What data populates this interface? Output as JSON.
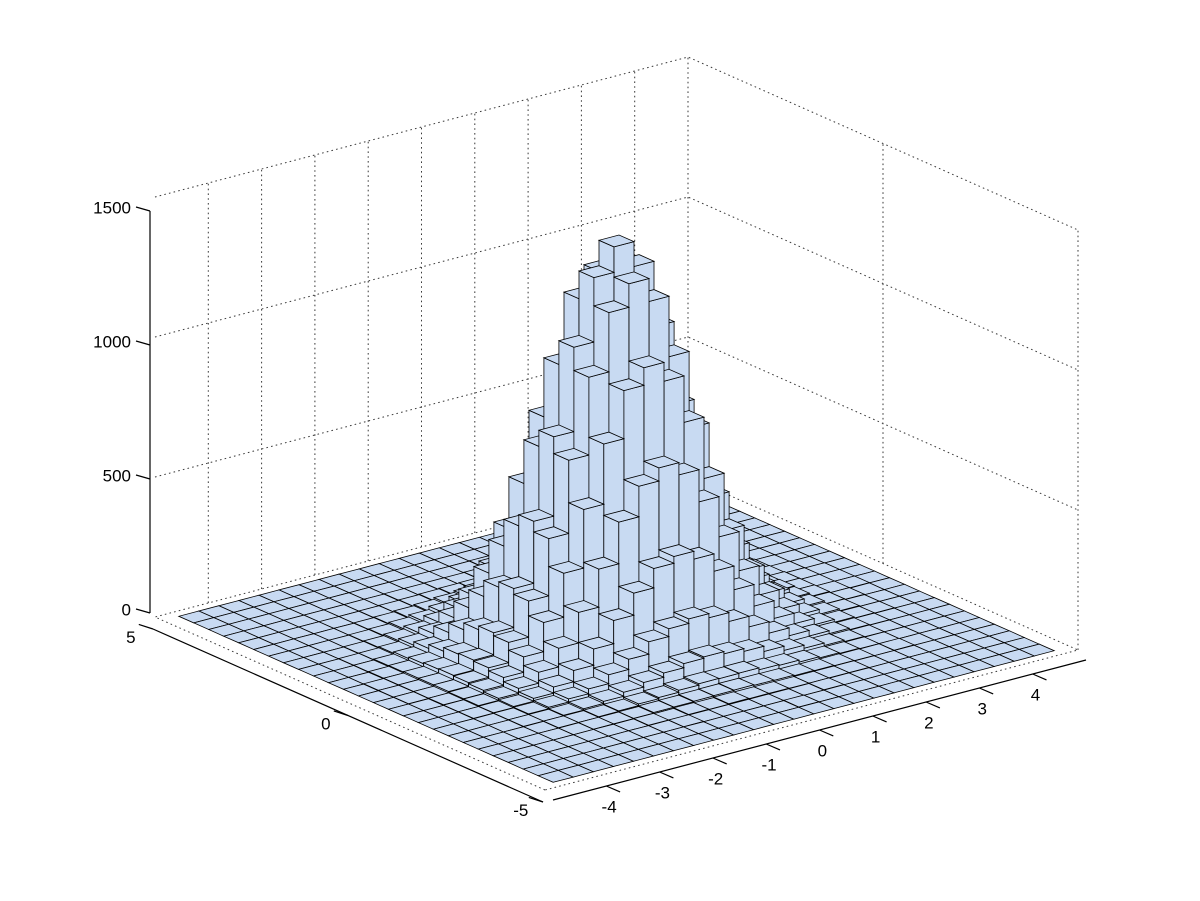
{
  "figure": {
    "title": "",
    "background": "#ffffff"
  },
  "chart_data": {
    "type": "3d-histogram",
    "description": "Bivariate Gaussian sample histogram (MATLAB hist3-style 3D bar plot)",
    "x_axis": {
      "range": [
        -5,
        5
      ],
      "ticks": [
        -4,
        -3,
        -2,
        -1,
        0,
        1,
        2,
        3,
        4
      ],
      "tick_labels": [
        "-4",
        "-3",
        "-2",
        "-1",
        "0",
        "1",
        "2",
        "3",
        "4"
      ],
      "nbins": 25,
      "bin_start": -4.7,
      "bin_width": 0.376
    },
    "y_axis": {
      "range": [
        -5,
        5
      ],
      "ticks": [
        5,
        0,
        -5
      ],
      "tick_labels": [
        "5",
        "0",
        "-5"
      ],
      "nbins": 25,
      "bin_start": -4.8,
      "bin_width": 0.384
    },
    "z_axis": {
      "range": [
        0,
        1500
      ],
      "ticks": [
        0,
        500,
        1000,
        1500
      ],
      "tick_labels": [
        "0",
        "500",
        "1000",
        "1500"
      ]
    },
    "grid": true,
    "legend": null,
    "peak_count": 1402,
    "counts": [
      [
        0,
        0,
        0,
        0,
        0,
        0,
        0,
        0,
        0,
        0,
        0,
        0,
        0,
        0,
        0,
        0,
        0,
        0,
        0,
        0,
        0,
        0,
        0,
        0,
        0
      ],
      [
        0,
        0,
        0,
        0,
        0,
        0,
        0,
        0,
        0,
        0,
        0,
        0,
        0,
        1,
        0,
        0,
        0,
        0,
        0,
        0,
        0,
        0,
        0,
        0,
        0
      ],
      [
        0,
        0,
        0,
        0,
        0,
        0,
        0,
        0,
        1,
        0,
        0,
        0,
        0,
        0,
        0,
        1,
        0,
        0,
        0,
        0,
        0,
        0,
        0,
        0,
        0
      ],
      [
        0,
        0,
        0,
        0,
        0,
        0,
        0,
        1,
        0,
        2,
        1,
        3,
        2,
        2,
        1,
        1,
        1,
        1,
        0,
        0,
        0,
        0,
        0,
        0,
        0
      ],
      [
        0,
        0,
        0,
        0,
        0,
        1,
        1,
        2,
        4,
        5,
        7,
        8,
        9,
        7,
        6,
        4,
        3,
        2,
        1,
        0,
        1,
        0,
        0,
        0,
        0
      ],
      [
        0,
        0,
        0,
        0,
        1,
        1,
        3,
        5,
        11,
        15,
        22,
        27,
        26,
        27,
        20,
        17,
        10,
        6,
        3,
        1,
        0,
        0,
        0,
        0,
        0
      ],
      [
        0,
        0,
        0,
        1,
        1,
        3,
        8,
        15,
        29,
        45,
        60,
        75,
        80,
        72,
        62,
        43,
        28,
        17,
        8,
        3,
        1,
        0,
        0,
        0,
        0
      ],
      [
        0,
        0,
        0,
        1,
        3,
        8,
        19,
        36,
        68,
        104,
        148,
        176,
        192,
        177,
        145,
        107,
        66,
        38,
        18,
        8,
        3,
        1,
        0,
        0,
        0
      ],
      [
        0,
        0,
        1,
        2,
        6,
        16,
        38,
        78,
        136,
        219,
        298,
        367,
        391,
        363,
        301,
        216,
        139,
        76,
        38,
        16,
        6,
        2,
        1,
        0,
        0
      ],
      [
        0,
        0,
        1,
        4,
        11,
        28,
        67,
        134,
        243,
        379,
        528,
        637,
        684,
        640,
        525,
        381,
        241,
        136,
        66,
        28,
        11,
        4,
        1,
        0,
        0
      ],
      [
        0,
        0,
        2,
        5,
        16,
        43,
        98,
        202,
        359,
        568,
        783,
        955,
        1018,
        951,
        785,
        566,
        361,
        200,
        99,
        42,
        16,
        5,
        2,
        0,
        0
      ],
      [
        0,
        1,
        2,
        7,
        20,
        54,
        126,
        255,
        459,
        720,
        998,
        1210,
        1294,
        1212,
        996,
        722,
        457,
        256,
        125,
        54,
        20,
        7,
        2,
        1,
        0
      ],
      [
        0,
        1,
        2,
        7,
        22,
        58,
        137,
        276,
        497,
        780,
        1081,
        1311,
        1402,
        1313,
        1079,
        782,
        495,
        278,
        136,
        59,
        22,
        7,
        2,
        1,
        0
      ],
      [
        0,
        1,
        2,
        7,
        20,
        55,
        124,
        257,
        457,
        722,
        996,
        1212,
        1291,
        1210,
        998,
        720,
        459,
        255,
        126,
        54,
        20,
        7,
        2,
        1,
        0
      ],
      [
        0,
        0,
        2,
        5,
        16,
        42,
        100,
        200,
        361,
        566,
        785,
        952,
        1017,
        954,
        783,
        568,
        359,
        201,
        98,
        43,
        16,
        5,
        2,
        0,
        0
      ],
      [
        0,
        0,
        1,
        4,
        11,
        28,
        66,
        136,
        241,
        381,
        525,
        640,
        683,
        638,
        527,
        379,
        243,
        134,
        67,
        28,
        11,
        4,
        1,
        0,
        0
      ],
      [
        0,
        0,
        1,
        2,
        6,
        16,
        38,
        77,
        137,
        218,
        299,
        366,
        390,
        364,
        300,
        218,
        137,
        77,
        38,
        16,
        6,
        2,
        1,
        0,
        0
      ],
      [
        0,
        0,
        0,
        1,
        3,
        8,
        18,
        37,
        67,
        105,
        147,
        177,
        190,
        179,
        146,
        105,
        68,
        37,
        18,
        8,
        3,
        1,
        0,
        0,
        0
      ],
      [
        0,
        0,
        0,
        0,
        1,
        3,
        8,
        16,
        28,
        44,
        62,
        73,
        79,
        74,
        60,
        45,
        28,
        16,
        8,
        3,
        1,
        0,
        0,
        0,
        0
      ],
      [
        0,
        0,
        0,
        0,
        0,
        1,
        3,
        6,
        10,
        16,
        22,
        26,
        28,
        25,
        21,
        16,
        11,
        5,
        3,
        1,
        0,
        0,
        0,
        0,
        0
      ],
      [
        0,
        0,
        0,
        0,
        0,
        0,
        1,
        2,
        3,
        5,
        7,
        8,
        8,
        7,
        6,
        5,
        3,
        2,
        1,
        0,
        0,
        0,
        0,
        0,
        0
      ],
      [
        0,
        0,
        0,
        0,
        0,
        0,
        0,
        0,
        1,
        1,
        2,
        2,
        3,
        2,
        1,
        2,
        1,
        0,
        0,
        0,
        0,
        0,
        0,
        0,
        0
      ],
      [
        0,
        0,
        0,
        0,
        0,
        0,
        0,
        0,
        0,
        0,
        1,
        0,
        0,
        1,
        0,
        0,
        0,
        0,
        0,
        0,
        0,
        0,
        0,
        0,
        0
      ],
      [
        0,
        0,
        0,
        0,
        0,
        0,
        0,
        0,
        0,
        0,
        0,
        0,
        0,
        0,
        0,
        0,
        0,
        0,
        0,
        0,
        0,
        0,
        0,
        0,
        0
      ],
      [
        0,
        0,
        0,
        0,
        0,
        0,
        0,
        0,
        0,
        0,
        0,
        0,
        0,
        0,
        0,
        0,
        0,
        0,
        0,
        0,
        0,
        0,
        0,
        0,
        0
      ]
    ],
    "colors": {
      "bar_fill": "#c8daf2",
      "bar_edge": "#000000",
      "grid_line": "#3a3a3a",
      "axis_line": "#000000",
      "text": "#000000",
      "background": "#ffffff"
    }
  }
}
